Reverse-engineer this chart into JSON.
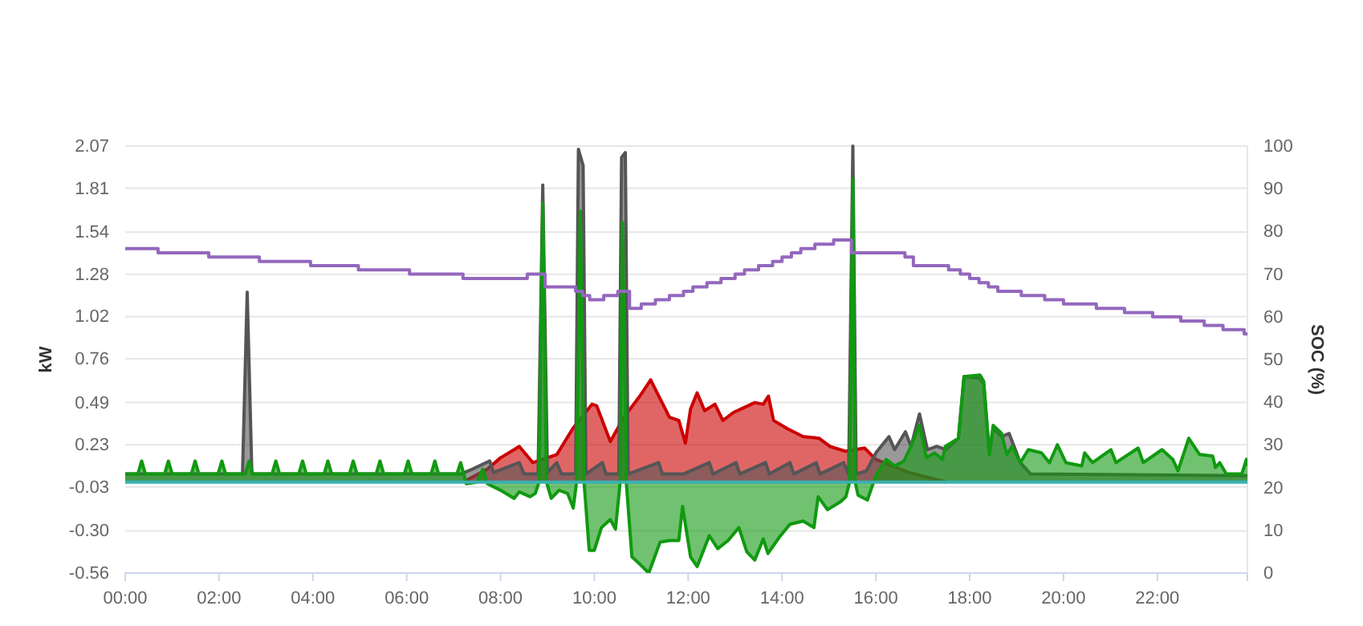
{
  "chart_data": {
    "type": "area",
    "ylabel": "kW",
    "y2label": "SOC (%)",
    "grid": "y",
    "xlim": [
      0,
      23.92
    ],
    "xticks": [
      {
        "value": 0,
        "label": "00:00"
      },
      {
        "value": 2,
        "label": "02:00"
      },
      {
        "value": 4,
        "label": "04:00"
      },
      {
        "value": 6,
        "label": "06:00"
      },
      {
        "value": 8,
        "label": "08:00"
      },
      {
        "value": 10,
        "label": "10:00"
      },
      {
        "value": 12,
        "label": "12:00"
      },
      {
        "value": 14,
        "label": "14:00"
      },
      {
        "value": 16,
        "label": "16:00"
      },
      {
        "value": 18,
        "label": "18:00"
      },
      {
        "value": 20,
        "label": "20:00"
      },
      {
        "value": 22,
        "label": "22:00"
      }
    ],
    "ylim": [
      -0.56,
      2.07
    ],
    "yticks": [
      -0.56,
      {
        "value": -0.3,
        "label": "-0.30"
      },
      -0.03,
      0.23,
      0.49,
      0.76,
      1.02,
      1.28,
      1.54,
      1.81,
      2.07
    ],
    "y2lim": [
      0,
      100
    ],
    "y2ticks": [
      0,
      10,
      20,
      30,
      40,
      50,
      60,
      70,
      80,
      90,
      100
    ],
    "series": [
      {
        "color": "#cc0000",
        "x": [
          7.2,
          7.72,
          8.0,
          8.29,
          8.4,
          8.69,
          9.2,
          9.54,
          9.95,
          10.05,
          10.34,
          10.63,
          10.97,
          11.2,
          11.6,
          11.8,
          11.94,
          12.05,
          12.19,
          12.35,
          12.57,
          12.74,
          12.97,
          13.2,
          13.42,
          13.6,
          13.71,
          13.82,
          14.11,
          14.45,
          14.79,
          15.02,
          15.36,
          15.76,
          16.0,
          16.34,
          16.7,
          17.1,
          17.5
        ],
        "values": [
          0,
          0.08,
          0.15,
          0.2,
          0.22,
          0.12,
          0.17,
          0.33,
          0.48,
          0.47,
          0.25,
          0.4,
          0.53,
          0.63,
          0.4,
          0.38,
          0.24,
          0.45,
          0.55,
          0.44,
          0.48,
          0.38,
          0.43,
          0.46,
          0.49,
          0.48,
          0.53,
          0.38,
          0.33,
          0.28,
          0.27,
          0.22,
          0.19,
          0.21,
          0.14,
          0.1,
          0.06,
          0.03,
          0
        ]
      },
      {
        "color": "#555555",
        "x": [
          0,
          2.5,
          2.6,
          2.7,
          7.15,
          7.4,
          7.77,
          7.85,
          8.4,
          8.5,
          8.8,
          8.9,
          9.0,
          9.2,
          9.3,
          9.6,
          9.66,
          9.76,
          9.82,
          10.17,
          10.25,
          10.52,
          10.58,
          10.66,
          10.72,
          11.37,
          11.45,
          11.9,
          12.45,
          12.53,
          13.02,
          13.1,
          13.65,
          13.73,
          14.17,
          14.25,
          14.73,
          14.81,
          15.31,
          15.42,
          15.51,
          15.58,
          15.8,
          16.0,
          16.28,
          16.4,
          16.63,
          16.75,
          16.93,
          17.1,
          17.3,
          17.5,
          17.76,
          17.88,
          18.22,
          18.3,
          18.42,
          18.5,
          18.68,
          18.84,
          19.08,
          19.3,
          23.92
        ],
        "values": [
          0.05,
          0.05,
          1.17,
          0.05,
          0.05,
          0.08,
          0.13,
          0.06,
          0.12,
          0.05,
          0.05,
          1.83,
          0.06,
          0.12,
          0.05,
          0.05,
          2.05,
          1.95,
          0.05,
          0.12,
          0.05,
          0.05,
          2.0,
          2.03,
          0.05,
          0.12,
          0.05,
          0.05,
          0.12,
          0.05,
          0.12,
          0.05,
          0.12,
          0.05,
          0.12,
          0.05,
          0.12,
          0.05,
          0.12,
          0.05,
          2.07,
          0.05,
          0.07,
          0.18,
          0.28,
          0.2,
          0.31,
          0.22,
          0.42,
          0.2,
          0.22,
          0.2,
          0.27,
          0.65,
          0.64,
          0.6,
          0.17,
          0.33,
          0.28,
          0.3,
          0.12,
          0.05,
          0.04
        ]
      },
      {
        "color": "#119911",
        "x": [
          0,
          0.27,
          0.35,
          0.43,
          0.84,
          0.92,
          1.0,
          1.41,
          1.49,
          1.57,
          1.98,
          2.06,
          2.14,
          2.56,
          2.64,
          2.72,
          3.13,
          3.21,
          3.29,
          3.7,
          3.78,
          3.86,
          4.24,
          4.32,
          4.4,
          4.78,
          4.86,
          4.94,
          5.35,
          5.43,
          5.51,
          5.95,
          6.03,
          6.11,
          6.52,
          6.6,
          6.68,
          7.07,
          7.15,
          7.27,
          7.5,
          7.62,
          7.72,
          8.0,
          8.29,
          8.4,
          8.63,
          8.74,
          8.82,
          8.9,
          8.98,
          9.08,
          9.25,
          9.43,
          9.55,
          9.62,
          9.7,
          9.78,
          9.89,
          10.0,
          10.15,
          10.34,
          10.45,
          10.55,
          10.6,
          10.68,
          10.8,
          10.95,
          11.16,
          11.4,
          11.6,
          11.8,
          11.88,
          12.05,
          12.19,
          12.45,
          12.63,
          12.85,
          13.08,
          13.25,
          13.42,
          13.6,
          13.7,
          13.94,
          14.17,
          14.45,
          14.68,
          14.77,
          14.97,
          15.25,
          15.36,
          15.44,
          15.51,
          15.56,
          15.62,
          15.82,
          16.0,
          16.22,
          16.4,
          16.6,
          16.73,
          16.93,
          17.08,
          17.25,
          17.42,
          17.48,
          17.76,
          17.88,
          18.22,
          18.3,
          18.42,
          18.5,
          18.68,
          18.79,
          18.9,
          19.08,
          19.25,
          19.53,
          19.7,
          19.87,
          20.05,
          20.39,
          20.45,
          20.62,
          21.01,
          21.12,
          21.59,
          21.7,
          22.1,
          22.33,
          22.44,
          22.67,
          22.9,
          23.18,
          23.24,
          23.33,
          23.47,
          23.8,
          23.9,
          23.92
        ],
        "values": [
          0.05,
          0.05,
          0.13,
          0.05,
          0.05,
          0.13,
          0.05,
          0.05,
          0.13,
          0.05,
          0.05,
          0.13,
          0.05,
          0.05,
          0.13,
          0.05,
          0.05,
          0.13,
          0.05,
          0.05,
          0.13,
          0.05,
          0.05,
          0.13,
          0.05,
          0.05,
          0.13,
          0.05,
          0.05,
          0.13,
          0.05,
          0.05,
          0.13,
          0.05,
          0.05,
          0.13,
          0.05,
          0.05,
          0.12,
          -0.01,
          0.0,
          0.08,
          -0.01,
          -0.05,
          -0.1,
          -0.06,
          -0.09,
          -0.07,
          0.0,
          1.72,
          0.0,
          -0.1,
          -0.05,
          -0.07,
          -0.16,
          0.0,
          1.67,
          0.0,
          -0.42,
          -0.42,
          -0.28,
          -0.23,
          -0.29,
          0.0,
          1.6,
          0.0,
          -0.46,
          -0.5,
          -0.56,
          -0.37,
          -0.36,
          -0.36,
          -0.15,
          -0.46,
          -0.52,
          -0.33,
          -0.41,
          -0.36,
          -0.28,
          -0.43,
          -0.48,
          -0.35,
          -0.44,
          -0.34,
          -0.26,
          -0.24,
          -0.28,
          -0.09,
          -0.17,
          -0.12,
          -0.09,
          0.0,
          1.87,
          0.0,
          -0.08,
          -0.11,
          0.04,
          0.14,
          0.1,
          0.13,
          0.21,
          0.35,
          0.15,
          0.18,
          0.14,
          0.22,
          0.27,
          0.65,
          0.66,
          0.62,
          0.17,
          0.35,
          0.3,
          0.17,
          0.22,
          0.12,
          0.2,
          0.18,
          0.12,
          0.23,
          0.12,
          0.1,
          0.18,
          0.12,
          0.2,
          0.12,
          0.21,
          0.12,
          0.2,
          0.14,
          0.07,
          0.27,
          0.17,
          0.16,
          0.09,
          0.12,
          0.05,
          0.05,
          0.14,
          0.1
        ]
      },
      {
        "type": "line",
        "color": "#3ab0b0",
        "x": [
          0,
          23.92
        ],
        "values": [
          0,
          0
        ]
      },
      {
        "type": "step",
        "axis": "y2",
        "color": "#9467bd",
        "x": [
          0,
          0.7,
          1.78,
          2.86,
          3.95,
          4.97,
          6.06,
          7.2,
          8.57,
          8.95,
          9.6,
          9.75,
          9.9,
          10.2,
          10.5,
          10.75,
          11.0,
          11.3,
          11.6,
          11.9,
          12.1,
          12.4,
          12.7,
          13.0,
          13.2,
          13.5,
          13.8,
          14.0,
          14.2,
          14.4,
          14.7,
          15.1,
          15.48,
          16.62,
          16.8,
          17.55,
          17.8,
          18.0,
          18.2,
          18.4,
          18.6,
          19.1,
          19.6,
          20.0,
          20.7,
          21.3,
          21.9,
          22.5,
          23.0,
          23.4,
          23.85,
          23.92
        ],
        "values": [
          76,
          75,
          74,
          73,
          72,
          71,
          70,
          69,
          70,
          67,
          66,
          65,
          64,
          65,
          66,
          62,
          63,
          64,
          65,
          66,
          67,
          68,
          69,
          70,
          71,
          72,
          73,
          74,
          75,
          76,
          77,
          78,
          75,
          74,
          72,
          71,
          70,
          69,
          68,
          67,
          66,
          65,
          64,
          63,
          62,
          61,
          60,
          59,
          58,
          57,
          56,
          56
        ]
      }
    ]
  }
}
